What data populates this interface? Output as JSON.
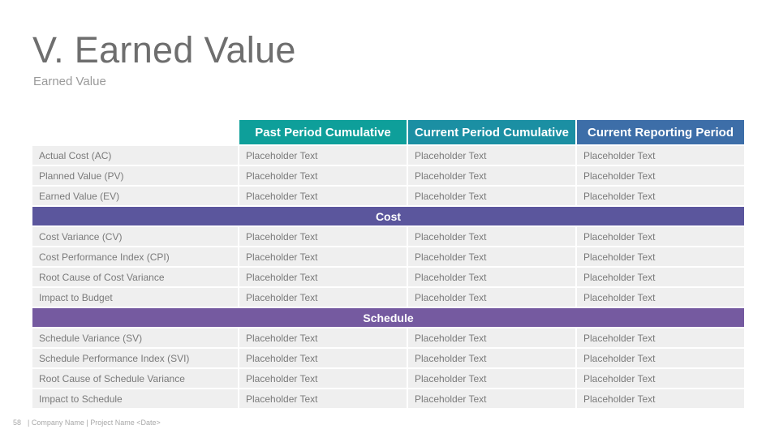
{
  "slide": {
    "title": "V. Earned Value",
    "subtitle": "Earned Value"
  },
  "colors": {
    "header_teal": "#0e9f9a",
    "header_cyan": "#1b8fa3",
    "header_blue": "#3d6ea8",
    "cost_band": "#5b569d",
    "schedule_band": "#755aa0",
    "row_bg": "#efefef"
  },
  "table": {
    "headers": [
      "Past Period Cumulative",
      "Current Period Cumulative",
      "Current Reporting Period"
    ],
    "rows_value": [
      {
        "label": "Actual Cost (AC)",
        "cells": [
          "Placeholder Text",
          "Placeholder Text",
          "Placeholder Text"
        ]
      },
      {
        "label": "Planned Value (PV)",
        "cells": [
          "Placeholder Text",
          "Placeholder Text",
          "Placeholder Text"
        ]
      },
      {
        "label": "Earned Value (EV)",
        "cells": [
          "Placeholder Text",
          "Placeholder Text",
          "Placeholder Text"
        ]
      }
    ],
    "cost_section": "Cost",
    "rows_cost": [
      {
        "label": "Cost Variance (CV)",
        "cells": [
          "Placeholder Text",
          "Placeholder Text",
          "Placeholder Text"
        ]
      },
      {
        "label": "Cost Performance Index (CPI)",
        "cells": [
          "Placeholder Text",
          "Placeholder Text",
          "Placeholder Text"
        ]
      },
      {
        "label": "Root Cause of Cost Variance",
        "cells": [
          "Placeholder Text",
          "Placeholder Text",
          "Placeholder Text"
        ]
      },
      {
        "label": "Impact to Budget",
        "cells": [
          "Placeholder Text",
          "Placeholder Text",
          "Placeholder Text"
        ]
      }
    ],
    "schedule_section": "Schedule",
    "rows_schedule": [
      {
        "label": "Schedule Variance (SV)",
        "cells": [
          "Placeholder Text",
          "Placeholder Text",
          "Placeholder Text"
        ]
      },
      {
        "label": "Schedule Performance Index (SVI)",
        "cells": [
          "Placeholder Text",
          "Placeholder Text",
          "Placeholder Text"
        ]
      },
      {
        "label": "Root Cause of Schedule Variance",
        "cells": [
          "Placeholder Text",
          "Placeholder Text",
          "Placeholder Text"
        ]
      },
      {
        "label": "Impact to Schedule",
        "cells": [
          "Placeholder Text",
          "Placeholder Text",
          "Placeholder Text"
        ]
      }
    ]
  },
  "footer": {
    "page_number": "58",
    "text": "| Company Name | Project Name <Date>"
  }
}
